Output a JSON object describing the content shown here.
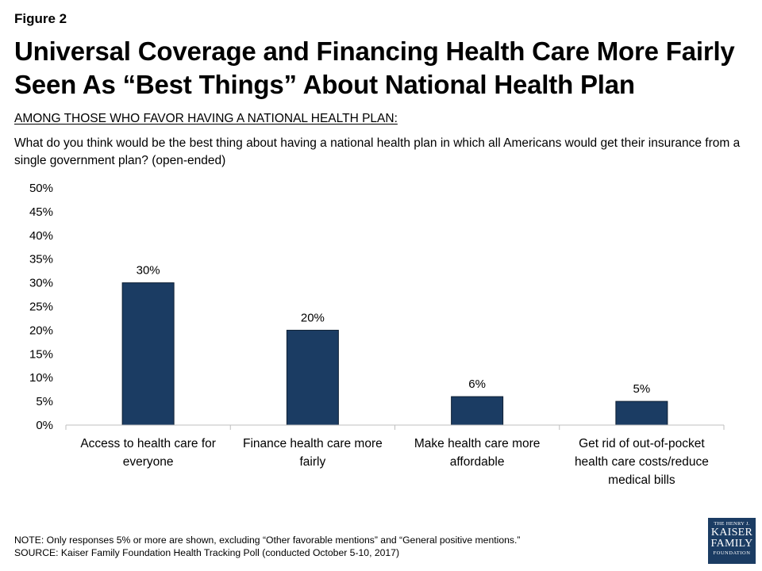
{
  "figure_label": "Figure 2",
  "title": "Universal Coverage and Financing Health Care More Fairly Seen As “Best Things” About National Health Plan",
  "subhead": "AMONG THOSE WHO FAVOR HAVING A NATIONAL HEALTH PLAN:",
  "question": "What do you think would be the best thing about having a national health plan in which all Americans would get their insurance from a single government plan? (open-ended)",
  "chart_data": {
    "type": "bar",
    "categories": [
      [
        "Access to health care for",
        "everyone"
      ],
      [
        "Finance health care more",
        "fairly"
      ],
      [
        "Make health care more",
        "affordable"
      ],
      [
        "Get rid of out-of-pocket",
        "health care costs/reduce",
        "medical bills"
      ]
    ],
    "values": [
      30,
      20,
      6,
      5
    ],
    "data_labels": [
      "30%",
      "20%",
      "6%",
      "5%"
    ],
    "y_ticks": [
      "0%",
      "5%",
      "10%",
      "15%",
      "20%",
      "25%",
      "30%",
      "35%",
      "40%",
      "45%",
      "50%"
    ],
    "ylim": [
      0,
      50
    ],
    "grid": false,
    "bar_color": "#1b3c63"
  },
  "note": "NOTE: Only responses 5% or more are shown, excluding “Other favorable mentions” and “General positive mentions.”",
  "source": "SOURCE: Kaiser Family Foundation Health Tracking Poll (conducted October 5-10, 2017)",
  "logo": {
    "line1": "THE HENRY J.",
    "line2": "KAISER",
    "line3": "FAMILY",
    "line4": "FOUNDATION",
    "color": "#1b3c63"
  }
}
